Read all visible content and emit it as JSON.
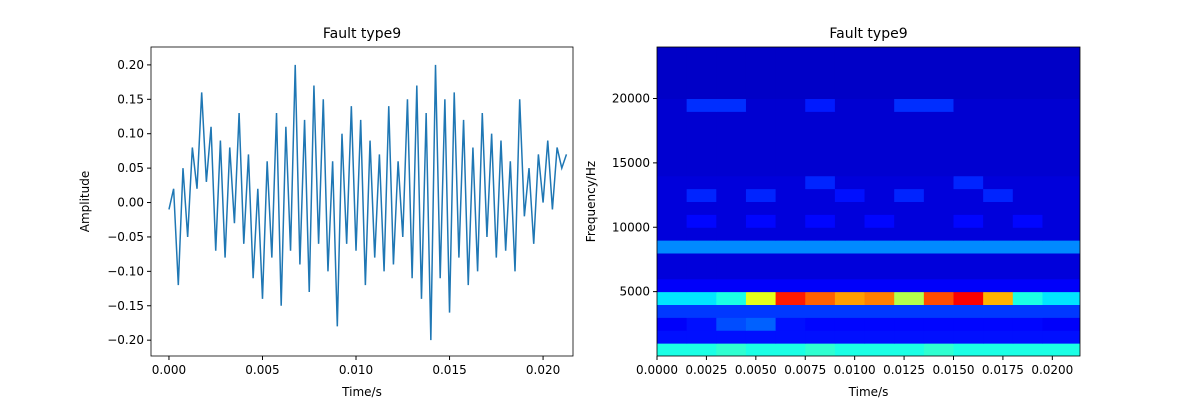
{
  "chart_data": [
    {
      "type": "line",
      "title": "Fault type9",
      "xlabel": "Time/s",
      "ylabel": "Amplitude",
      "color": "#1f77b4",
      "x": [
        0,
        0.00025,
        0.0005,
        0.00075,
        0.001,
        0.00125,
        0.0015,
        0.00175,
        0.002,
        0.00225,
        0.0025,
        0.00275,
        0.003,
        0.00325,
        0.0035,
        0.00375,
        0.004,
        0.00425,
        0.0045,
        0.00475,
        0.005,
        0.00525,
        0.0055,
        0.00575,
        0.006,
        0.00625,
        0.0065,
        0.00675,
        0.007,
        0.00725,
        0.0075,
        0.00775,
        0.008,
        0.00825,
        0.0085,
        0.00875,
        0.009,
        0.00925,
        0.0095,
        0.00975,
        0.01,
        0.01025,
        0.0105,
        0.01075,
        0.011,
        0.01125,
        0.0115,
        0.01175,
        0.012,
        0.01225,
        0.0125,
        0.01275,
        0.013,
        0.01325,
        0.0135,
        0.01375,
        0.014,
        0.01425,
        0.0145,
        0.01475,
        0.015,
        0.01525,
        0.0155,
        0.01575,
        0.016,
        0.01625,
        0.0165,
        0.01675,
        0.017,
        0.01725,
        0.0175,
        0.01775,
        0.018,
        0.01825,
        0.0185,
        0.01875,
        0.019,
        0.01925,
        0.0195,
        0.01975,
        0.02,
        0.02025,
        0.0205,
        0.02075,
        0.021,
        0.02125
      ],
      "values": [
        -0.01,
        0.02,
        -0.12,
        0.05,
        -0.05,
        0.08,
        0.02,
        0.16,
        0.03,
        0.11,
        -0.07,
        0.09,
        -0.08,
        0.08,
        -0.03,
        0.13,
        -0.06,
        0.07,
        -0.11,
        0.02,
        -0.14,
        0.06,
        -0.08,
        0.13,
        -0.15,
        0.11,
        -0.07,
        0.2,
        -0.09,
        0.12,
        -0.13,
        0.17,
        -0.06,
        0.15,
        -0.1,
        0.06,
        -0.18,
        0.1,
        -0.06,
        0.14,
        -0.07,
        0.12,
        -0.12,
        0.09,
        -0.08,
        0.07,
        -0.1,
        0.14,
        -0.09,
        0.06,
        -0.05,
        0.15,
        -0.11,
        0.17,
        -0.14,
        0.13,
        -0.2,
        0.2,
        -0.11,
        0.15,
        -0.16,
        0.16,
        -0.08,
        0.12,
        -0.12,
        0.08,
        -0.1,
        0.13,
        -0.05,
        0.1,
        -0.08,
        0.09,
        -0.07,
        0.06,
        -0.1,
        0.15,
        -0.02,
        0.05,
        -0.06,
        0.07,
        0.0,
        0.09,
        -0.01,
        0.08,
        0.05,
        0.07
      ],
      "xlim": [
        -0.00096,
        0.0216
      ],
      "ylim": [
        -0.223,
        0.226
      ],
      "xticks": [
        {
          "value": 0,
          "label": "0.000"
        },
        {
          "value": 0.005,
          "label": "0.005"
        },
        {
          "value": 0.01,
          "label": "0.010"
        },
        {
          "value": 0.015,
          "label": "0.015"
        },
        {
          "value": 0.02,
          "label": "0.020"
        }
      ],
      "yticks": [
        {
          "value": -0.2,
          "label": "−0.20"
        },
        {
          "value": -0.15,
          "label": "−0.15"
        },
        {
          "value": -0.1,
          "label": "−0.10"
        },
        {
          "value": -0.05,
          "label": "−0.05"
        },
        {
          "value": 0,
          "label": "0.00"
        },
        {
          "value": 0.05,
          "label": "0.05"
        },
        {
          "value": 0.1,
          "label": "0.10"
        },
        {
          "value": 0.15,
          "label": "0.15"
        },
        {
          "value": 0.2,
          "label": "0.20"
        }
      ]
    },
    {
      "type": "heatmap",
      "title": "Fault type9",
      "xlabel": "Time/s",
      "ylabel": "Frequency/Hz",
      "colormap": "jet",
      "xbins": [
        0,
        0.0015,
        0.003,
        0.0045,
        0.006,
        0.0075,
        0.009,
        0.0105,
        0.012,
        0.0135,
        0.015,
        0.0165,
        0.018,
        0.0195,
        0.0214
      ],
      "ybins": [
        0,
        1000,
        2000,
        3000,
        4000,
        5000,
        6000,
        7000,
        8000,
        9000,
        10000,
        11000,
        12000,
        13000,
        14000,
        15000,
        16000,
        17000,
        18000,
        19000,
        20000,
        21000,
        22000,
        23000,
        24000
      ],
      "z": [
        [
          0.4,
          0.4,
          0.42,
          0.4,
          0.4,
          0.42,
          0.4,
          0.4,
          0.4,
          0.42,
          0.4,
          0.4,
          0.4,
          0.4
        ],
        [
          0.14,
          0.14,
          0.14,
          0.14,
          0.14,
          0.14,
          0.14,
          0.14,
          0.14,
          0.14,
          0.14,
          0.14,
          0.14,
          0.14
        ],
        [
          0.12,
          0.14,
          0.2,
          0.22,
          0.14,
          0.13,
          0.13,
          0.13,
          0.13,
          0.13,
          0.13,
          0.13,
          0.13,
          0.12
        ],
        [
          0.18,
          0.18,
          0.18,
          0.18,
          0.18,
          0.18,
          0.18,
          0.18,
          0.18,
          0.18,
          0.18,
          0.18,
          0.18,
          0.18
        ],
        [
          0.35,
          0.35,
          0.4,
          0.6,
          0.85,
          0.78,
          0.72,
          0.75,
          0.55,
          0.8,
          0.88,
          0.7,
          0.4,
          0.35
        ],
        [
          0.12,
          0.12,
          0.12,
          0.12,
          0.12,
          0.12,
          0.12,
          0.12,
          0.12,
          0.12,
          0.12,
          0.12,
          0.12,
          0.12
        ],
        [
          0.09,
          0.09,
          0.09,
          0.09,
          0.09,
          0.09,
          0.09,
          0.09,
          0.09,
          0.09,
          0.09,
          0.09,
          0.09,
          0.09
        ],
        [
          0.09,
          0.09,
          0.09,
          0.09,
          0.09,
          0.09,
          0.09,
          0.09,
          0.09,
          0.09,
          0.09,
          0.09,
          0.09,
          0.09
        ],
        [
          0.26,
          0.26,
          0.26,
          0.26,
          0.26,
          0.26,
          0.26,
          0.26,
          0.26,
          0.26,
          0.26,
          0.26,
          0.26,
          0.26
        ],
        [
          0.09,
          0.09,
          0.09,
          0.09,
          0.09,
          0.09,
          0.09,
          0.09,
          0.09,
          0.09,
          0.09,
          0.09,
          0.09,
          0.09
        ],
        [
          0.09,
          0.13,
          0.09,
          0.13,
          0.09,
          0.13,
          0.09,
          0.13,
          0.09,
          0.09,
          0.13,
          0.09,
          0.13,
          0.09
        ],
        [
          0.09,
          0.09,
          0.09,
          0.09,
          0.09,
          0.09,
          0.09,
          0.09,
          0.09,
          0.09,
          0.09,
          0.09,
          0.09,
          0.09
        ],
        [
          0.09,
          0.16,
          0.09,
          0.16,
          0.09,
          0.09,
          0.14,
          0.09,
          0.16,
          0.09,
          0.09,
          0.16,
          0.09,
          0.09
        ],
        [
          0.09,
          0.09,
          0.09,
          0.09,
          0.09,
          0.16,
          0.09,
          0.09,
          0.09,
          0.09,
          0.16,
          0.09,
          0.09,
          0.09
        ],
        [
          0.08,
          0.08,
          0.08,
          0.08,
          0.08,
          0.08,
          0.08,
          0.08,
          0.08,
          0.08,
          0.08,
          0.08,
          0.08,
          0.08
        ],
        [
          0.08,
          0.08,
          0.08,
          0.08,
          0.08,
          0.08,
          0.08,
          0.08,
          0.08,
          0.08,
          0.08,
          0.08,
          0.08,
          0.08
        ],
        [
          0.08,
          0.08,
          0.08,
          0.08,
          0.08,
          0.08,
          0.08,
          0.08,
          0.08,
          0.08,
          0.08,
          0.08,
          0.08,
          0.08
        ],
        [
          0.08,
          0.08,
          0.08,
          0.08,
          0.08,
          0.08,
          0.08,
          0.08,
          0.08,
          0.08,
          0.08,
          0.08,
          0.08,
          0.08
        ],
        [
          0.08,
          0.08,
          0.08,
          0.08,
          0.08,
          0.08,
          0.08,
          0.08,
          0.08,
          0.08,
          0.08,
          0.08,
          0.08,
          0.08
        ],
        [
          0.08,
          0.17,
          0.17,
          0.08,
          0.08,
          0.15,
          0.08,
          0.08,
          0.17,
          0.17,
          0.08,
          0.08,
          0.08,
          0.08
        ],
        [
          0.07,
          0.07,
          0.07,
          0.07,
          0.07,
          0.07,
          0.07,
          0.07,
          0.07,
          0.07,
          0.07,
          0.07,
          0.07,
          0.07
        ],
        [
          0.07,
          0.07,
          0.07,
          0.07,
          0.07,
          0.07,
          0.07,
          0.07,
          0.07,
          0.07,
          0.07,
          0.07,
          0.07,
          0.07
        ],
        [
          0.07,
          0.07,
          0.07,
          0.07,
          0.07,
          0.07,
          0.07,
          0.07,
          0.07,
          0.07,
          0.07,
          0.07,
          0.07,
          0.07
        ],
        [
          0.07,
          0.07,
          0.07,
          0.07,
          0.07,
          0.07,
          0.07,
          0.07,
          0.07,
          0.07,
          0.07,
          0.07,
          0.07,
          0.07
        ]
      ],
      "xlim": [
        0,
        0.0214
      ],
      "ylim": [
        0,
        24000
      ],
      "xticks": [
        {
          "value": 0,
          "label": "0.0000"
        },
        {
          "value": 0.0025,
          "label": "0.0025"
        },
        {
          "value": 0.005,
          "label": "0.0050"
        },
        {
          "value": 0.0075,
          "label": "0.0075"
        },
        {
          "value": 0.01,
          "label": "0.0100"
        },
        {
          "value": 0.0125,
          "label": "0.0125"
        },
        {
          "value": 0.015,
          "label": "0.0150"
        },
        {
          "value": 0.0175,
          "label": "0.0175"
        },
        {
          "value": 0.02,
          "label": "0.0200"
        }
      ],
      "yticks": [
        5000,
        10000,
        15000,
        20000
      ]
    }
  ]
}
